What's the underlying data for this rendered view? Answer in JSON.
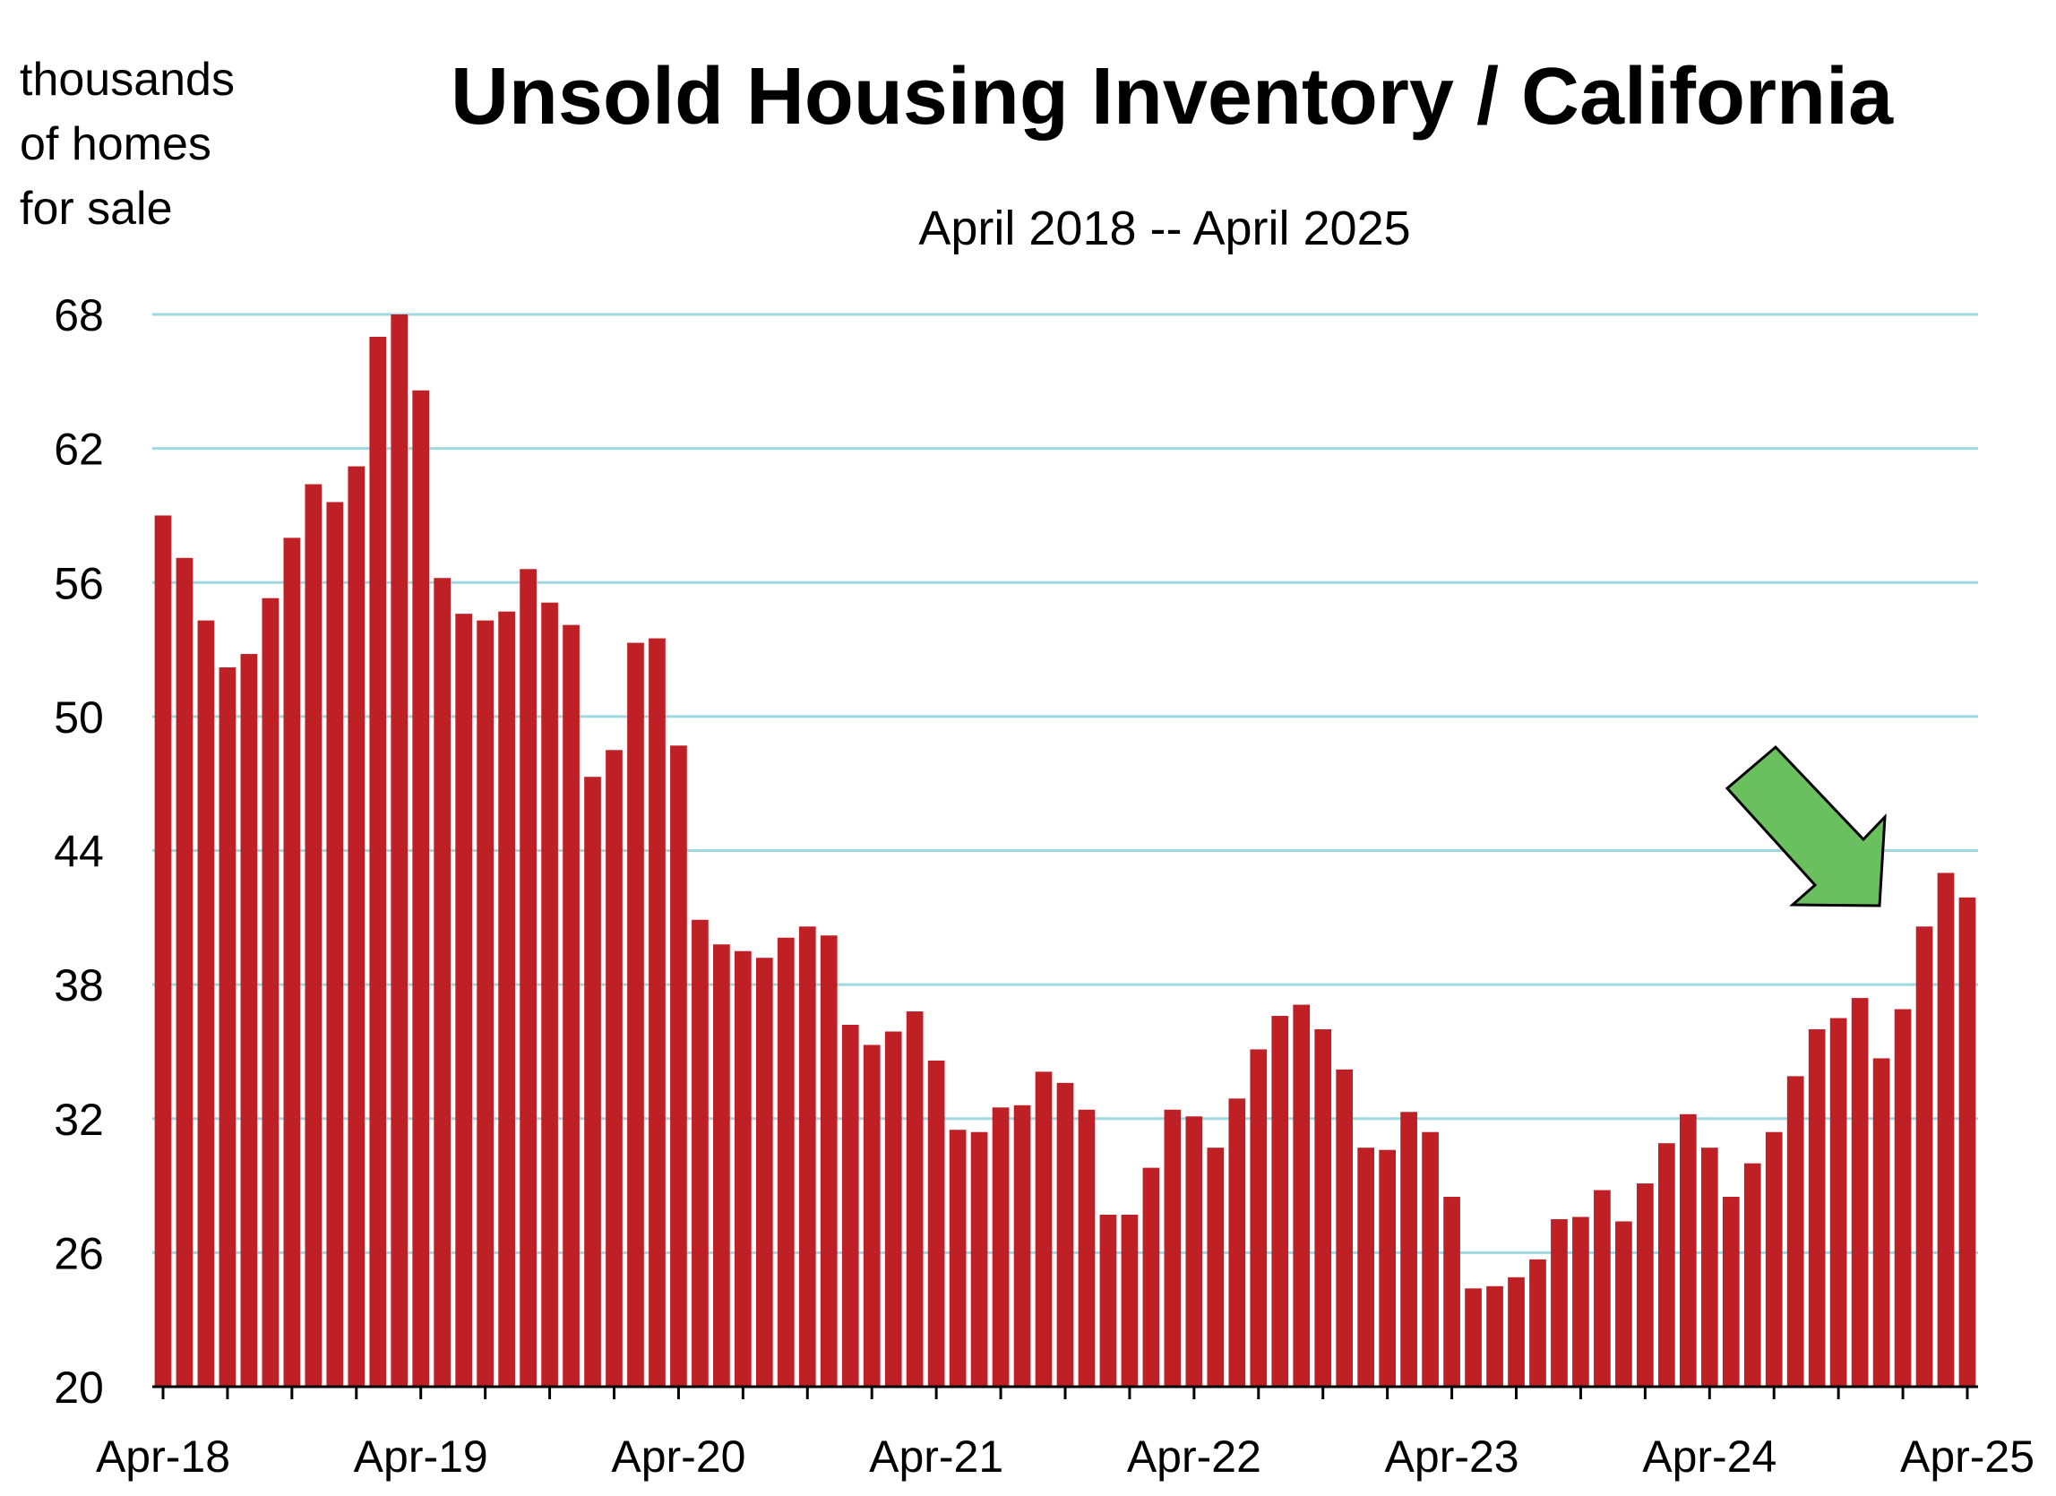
{
  "chart_data": {
    "type": "bar",
    "title": "Unsold Housing Inventory / California",
    "subtitle": "April 2018 -- April 2025",
    "ylabel": [
      "thousands",
      "of homes",
      "for sale"
    ],
    "xlabel": "",
    "ylim": [
      20,
      68
    ],
    "yticks": [
      "20",
      "26",
      "32",
      "38",
      "44",
      "50",
      "56",
      "62",
      "68"
    ],
    "xtick_labels": [
      "Apr-18",
      "Apr-19",
      "Apr-20",
      "Apr-21",
      "Apr-22",
      "Apr-23",
      "Apr-24",
      "Apr-25"
    ],
    "grid": true,
    "colors": {
      "bar": "#be2026",
      "grid": "#9fd8e0",
      "arrow": "#6abf5e"
    },
    "annotation": "green-arrow",
    "categories": [
      "Apr-18",
      "May-18",
      "Jun-18",
      "Jul-18",
      "Aug-18",
      "Sep-18",
      "Oct-18",
      "Nov-18",
      "Dec-18",
      "Jan-19",
      "Feb-19",
      "Mar-19",
      "Apr-19",
      "May-19",
      "Jun-19",
      "Jul-19",
      "Aug-19",
      "Sep-19",
      "Oct-19",
      "Nov-19",
      "Dec-19",
      "Jan-20",
      "Feb-20",
      "Mar-20",
      "Apr-20",
      "May-20",
      "Jun-20",
      "Jul-20",
      "Aug-20",
      "Sep-20",
      "Oct-20",
      "Nov-20",
      "Dec-20",
      "Jan-21",
      "Feb-21",
      "Mar-21",
      "Apr-21",
      "May-21",
      "Jun-21",
      "Jul-21",
      "Aug-21",
      "Sep-21",
      "Oct-21",
      "Nov-21",
      "Dec-21",
      "Jan-22",
      "Feb-22",
      "Mar-22",
      "Apr-22",
      "May-22",
      "Jun-22",
      "Jul-22",
      "Aug-22",
      "Sep-22",
      "Oct-22",
      "Nov-22",
      "Dec-22",
      "Jan-23",
      "Feb-23",
      "Mar-23",
      "Apr-23",
      "May-23",
      "Jun-23",
      "Jul-23",
      "Aug-23",
      "Sep-23",
      "Oct-23",
      "Nov-23",
      "Dec-23",
      "Jan-24",
      "Feb-24",
      "Mar-24",
      "Apr-24",
      "May-24",
      "Jun-24",
      "Jul-24",
      "Aug-24",
      "Sep-24",
      "Oct-24",
      "Nov-24",
      "Dec-24",
      "Jan-25",
      "Feb-25",
      "Mar-25",
      "Apr-25"
    ],
    "values": [
      59.0,
      57.1,
      54.3,
      52.2,
      52.8,
      55.3,
      58.0,
      60.4,
      59.6,
      61.2,
      67.0,
      68.0,
      64.6,
      56.2,
      54.6,
      54.3,
      54.7,
      56.6,
      55.1,
      54.1,
      47.3,
      48.5,
      53.3,
      53.5,
      48.7,
      40.9,
      39.8,
      39.5,
      39.2,
      40.1,
      40.6,
      40.2,
      36.2,
      35.3,
      35.9,
      36.8,
      34.6,
      31.5,
      31.4,
      32.5,
      32.6,
      34.1,
      33.6,
      32.4,
      27.7,
      27.7,
      29.8,
      32.4,
      32.1,
      30.7,
      32.9,
      35.1,
      36.6,
      37.1,
      36.0,
      34.2,
      30.7,
      30.6,
      32.3,
      31.4,
      28.5,
      24.4,
      24.5,
      24.9,
      25.7,
      27.5,
      27.6,
      28.8,
      27.4,
      29.1,
      30.9,
      32.2,
      30.7,
      28.5,
      30.0,
      31.4,
      33.9,
      36.0,
      36.5,
      37.4,
      34.7,
      36.9,
      40.6,
      43.0,
      41.9
    ]
  }
}
